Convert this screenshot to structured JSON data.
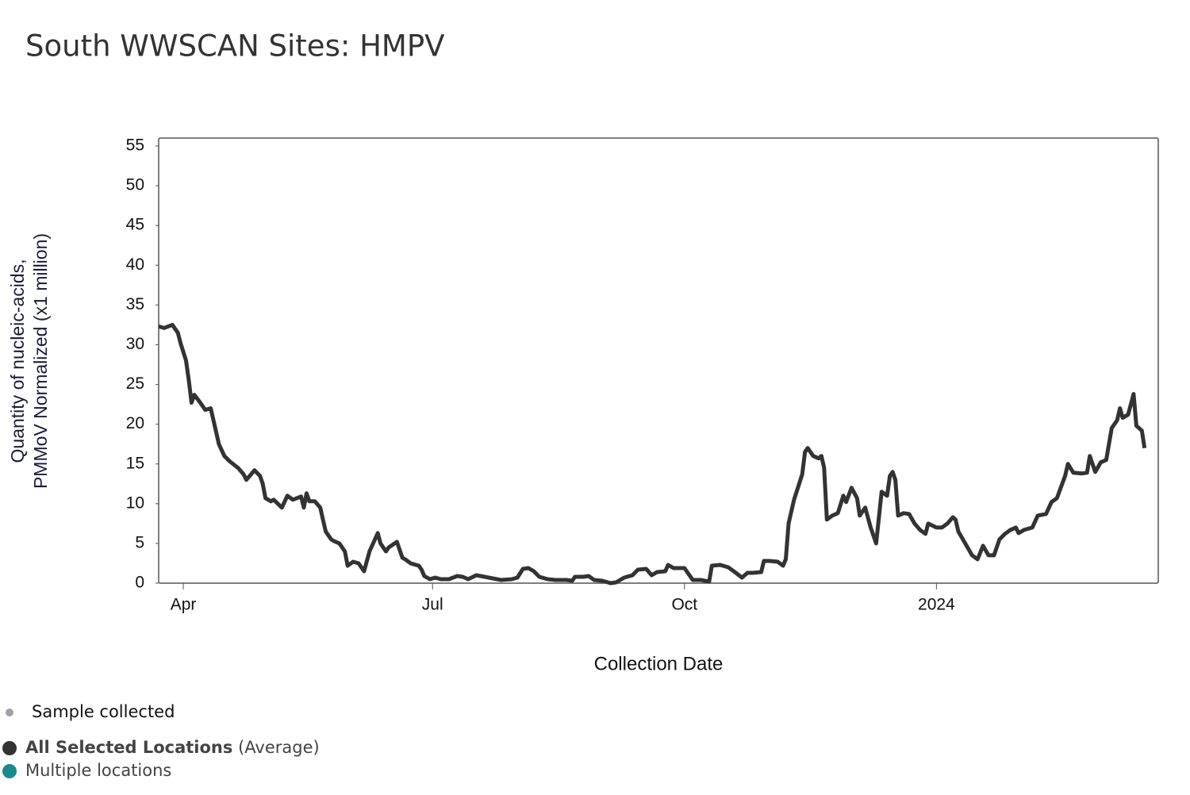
{
  "chart_data": {
    "type": "line",
    "title": "South WWSCAN Sites: HMPV",
    "xlabel": "Collection Date",
    "ylabel_lines": [
      "Quantity of nucleic-acids,",
      "PMMoV Normalized (x1 million)"
    ],
    "xlim": [
      -9,
      356
    ],
    "xticks": [
      {
        "value": 0,
        "label": "Apr"
      },
      {
        "value": 91,
        "label": "Jul"
      },
      {
        "value": 183,
        "label": "Oct"
      },
      {
        "value": 275,
        "label": "2024"
      }
    ],
    "ylim": [
      0,
      56
    ],
    "yticks": [
      0,
      5,
      10,
      15,
      20,
      25,
      30,
      35,
      40,
      45,
      50,
      55
    ],
    "x": [
      -9,
      -7,
      -4,
      -2,
      -1,
      1,
      2,
      3,
      4,
      6,
      8,
      10,
      12,
      13,
      15,
      17,
      20,
      22,
      23,
      26,
      28,
      29,
      30,
      32,
      33,
      36,
      38,
      40,
      43,
      44,
      45,
      46,
      48,
      50,
      51,
      52,
      54,
      55,
      57,
      59,
      60,
      62,
      64,
      66,
      68,
      71,
      72,
      74,
      75,
      78,
      80,
      81,
      83,
      86,
      87,
      88,
      90,
      92,
      94,
      97,
      100,
      102,
      104,
      107,
      110,
      113,
      116,
      120,
      122,
      124,
      126,
      128,
      130,
      133,
      136,
      140,
      142,
      143,
      146,
      148,
      150,
      153,
      156,
      158,
      161,
      164,
      166,
      169,
      171,
      173,
      176,
      177,
      179,
      183,
      186,
      189,
      192,
      193,
      196,
      199,
      201,
      204,
      206,
      208,
      211,
      212,
      214,
      217,
      219,
      220,
      221,
      223,
      226,
      227,
      228,
      230,
      232,
      233,
      234,
      235,
      237,
      239,
      241,
      242,
      244,
      246,
      247,
      249,
      251,
      253,
      255,
      257,
      258,
      259,
      260,
      261,
      263,
      265,
      267,
      269,
      271,
      272,
      275,
      277,
      279,
      281,
      282,
      283,
      286,
      288,
      290,
      292,
      294,
      296,
      298,
      300,
      302,
      304,
      305,
      307,
      310,
      312,
      315,
      317,
      319,
      322,
      323,
      325,
      328,
      330,
      331,
      333,
      335,
      337,
      339,
      341,
      342,
      343,
      345,
      347,
      348,
      350,
      351
    ],
    "series": [
      {
        "name": "All Selected Locations",
        "color": "#333333",
        "values": [
          32.3,
          32.1,
          32.5,
          31.5,
          30.2,
          28,
          25.5,
          22.7,
          23.7,
          22.8,
          21.8,
          22,
          19,
          17.5,
          16,
          15.3,
          14.5,
          13.7,
          13,
          14.2,
          13.5,
          12.5,
          10.7,
          10.3,
          10.5,
          9.5,
          11,
          10.5,
          10.9,
          9.5,
          11.3,
          10.3,
          10.3,
          9.5,
          8,
          6.5,
          5.5,
          5.3,
          5,
          4,
          2.2,
          2.7,
          2.5,
          1.5,
          4,
          6.3,
          5,
          4,
          4.5,
          5.2,
          3.2,
          3,
          2.5,
          2.2,
          1.7,
          0.9,
          0.5,
          0.7,
          0.5,
          0.5,
          0.9,
          0.8,
          0.5,
          1,
          0.8,
          0.6,
          0.4,
          0.5,
          0.7,
          1.8,
          1.9,
          1.5,
          0.8,
          0.5,
          0.4,
          0.4,
          0.3,
          0.8,
          0.8,
          0.9,
          0.4,
          0.3,
          0,
          0.1,
          0.7,
          1,
          1.7,
          1.8,
          1,
          1.4,
          1.5,
          2.3,
          1.9,
          1.9,
          0.4,
          0.4,
          0.2,
          2.2,
          2.3,
          2,
          1.5,
          0.7,
          1.3,
          1.3,
          1.4,
          2.8,
          2.8,
          2.7,
          2.2,
          3,
          7.5,
          10.5,
          13.7,
          16.5,
          17,
          16,
          15.7,
          16,
          14.5,
          8,
          8.5,
          8.8,
          11,
          10.2,
          12,
          10.7,
          8.5,
          9.5,
          7,
          5,
          11.5,
          11,
          13.5,
          14,
          13,
          8.5,
          8.8,
          8.7,
          7.5,
          6.7,
          6.2,
          7.5,
          7,
          7,
          7.5,
          8.3,
          8,
          6.5,
          4.7,
          3.5,
          3,
          4.7,
          3.5,
          3.5,
          5.5,
          6.2,
          6.7,
          7,
          6.3,
          6.7,
          7,
          8.5,
          8.7,
          10.2,
          10.7,
          13.5,
          15,
          13.9,
          13.8,
          13.9,
          16,
          14,
          15.2,
          15.5,
          19.5,
          20.5,
          22,
          20.8,
          21.2,
          23.8,
          19.8,
          19.2,
          17
        ]
      }
    ],
    "legend": [
      {
        "name": "Sample collected",
        "color": "#a0a0ac"
      },
      {
        "name": "All Selected Locations",
        "note": "(Average)",
        "color": "#333333"
      },
      {
        "name": "Multiple locations",
        "color": "#1a8a8a"
      }
    ]
  }
}
